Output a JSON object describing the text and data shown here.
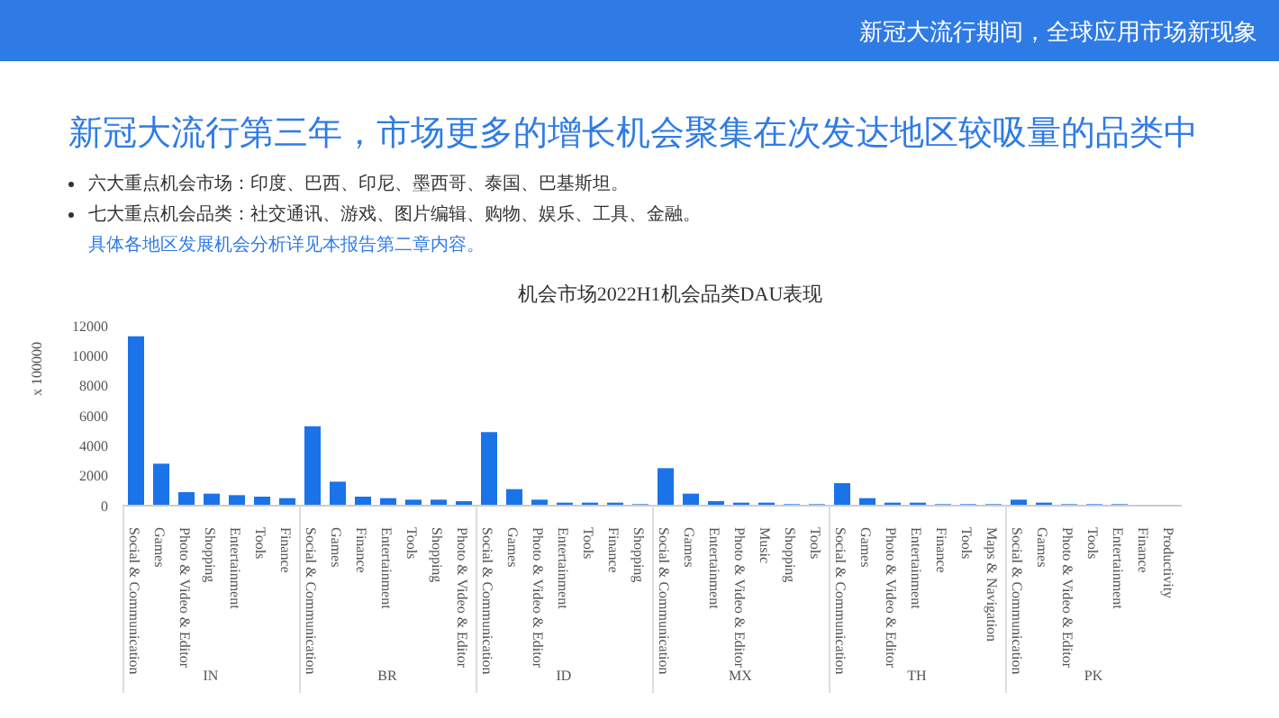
{
  "chart_data": [
    {
      "type": "other",
      "title": "机会市场2022H1机会品类DAU表现",
      "annotations": [
        "新冠大流行期间，全球应用市场新现象",
        "新冠大流行第三年，市场更多的增长机会聚集在次发达地区较吸量的品类中",
        "六大重点机会市场：印度、巴西、印尼、墨西哥、泰国、巴基斯坦。",
        "七大重点机会品类：社交通讯、游戏、图片编辑、购物、娱乐、工具、金融。",
        "具体各地区发展机会分析详见本报告第二章内容。"
      ]
    },
    {
      "type": "bar",
      "ylabel": "x 100000",
      "xlabel": "IN",
      "color": "#1a73e8",
      "ylim": [
        0,
        12000
      ],
      "yticks": [
        0,
        2000,
        4000,
        6000,
        8000,
        10000,
        12000
      ],
      "categories": [
        "Social & Communication",
        "Games",
        "Photo & Video & Editor",
        "Shopping",
        "Entertainment",
        "Tools",
        "Finance"
      ],
      "values": [
        11300,
        2800,
        900,
        800,
        700,
        600,
        500
      ]
    },
    {
      "type": "bar",
      "xlabel": "BR",
      "color": "#1a73e8",
      "ylim": [
        0,
        12000
      ],
      "yticks": [
        0,
        2000,
        4000,
        6000,
        8000,
        10000,
        12000
      ],
      "tick_labels": "x",
      "categories": [
        "Social & Communication",
        "Games",
        "Finance",
        "Entertainment",
        "Tools",
        "Shopping",
        "Photo & Video & Editor"
      ],
      "values": [
        5300,
        1600,
        600,
        500,
        400,
        400,
        300
      ]
    },
    {
      "type": "bar",
      "xlabel": "ID",
      "color": "#1a73e8",
      "ylim": [
        0,
        12000
      ],
      "yticks": [
        0,
        2000,
        4000,
        6000,
        8000,
        10000,
        12000
      ],
      "tick_labels": "x",
      "categories": [
        "Social & Communication",
        "Games",
        "Photo & Video & Editor",
        "Entertainment",
        "Tools",
        "Finance",
        "Shopping"
      ],
      "values": [
        4900,
        1100,
        400,
        200,
        200,
        200,
        100
      ]
    },
    {
      "type": "bar",
      "xlabel": "MX",
      "color": "#1a73e8",
      "ylim": [
        0,
        12000
      ],
      "yticks": [
        0,
        2000,
        4000,
        6000,
        8000,
        10000,
        12000
      ],
      "tick_labels": "x",
      "categories": [
        "Social & Communication",
        "Games",
        "Entertainment",
        "Photo & Video & Editor",
        "Music",
        "Shopping",
        "Tools"
      ],
      "values": [
        2500,
        800,
        300,
        200,
        200,
        100,
        100
      ]
    },
    {
      "type": "bar",
      "xlabel": "TH",
      "color": "#1a73e8",
      "ylim": [
        0,
        12000
      ],
      "yticks": [
        0,
        2000,
        4000,
        6000,
        8000,
        10000,
        12000
      ],
      "tick_labels": "x",
      "categories": [
        "Social & Communication",
        "Games",
        "Photo & Video & Editor",
        "Entertainment",
        "Finance",
        "Tools",
        "Maps & Navigation"
      ],
      "values": [
        1500,
        500,
        200,
        200,
        100,
        100,
        100
      ]
    },
    {
      "type": "bar",
      "xlabel": "PK",
      "color": "#1a73e8",
      "ylim": [
        0,
        12000
      ],
      "yticks": [
        0,
        2000,
        4000,
        6000,
        8000,
        10000,
        12000
      ],
      "tick_labels": "x",
      "categories": [
        "Social & Communication",
        "Games",
        "Photo & Video & Editor",
        "Tools",
        "Entertainment",
        "Finance",
        "Productivity"
      ],
      "values": [
        400,
        200,
        100,
        100,
        100,
        0,
        0
      ]
    }
  ]
}
